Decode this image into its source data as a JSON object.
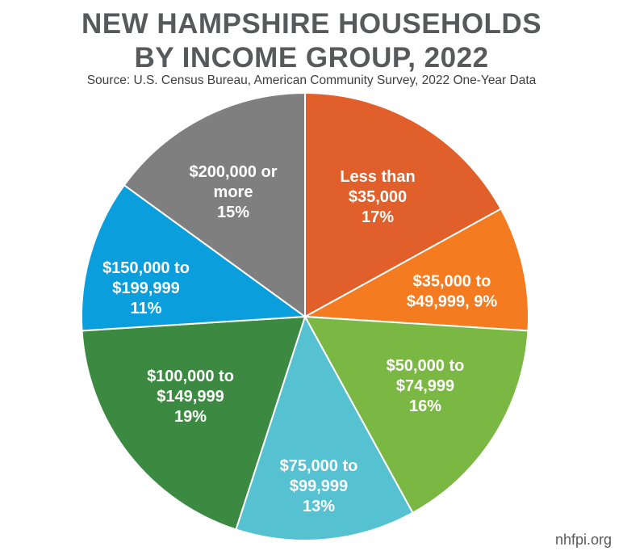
{
  "title_line1": "NEW HAMPSHIRE HOUSEHOLDS",
  "title_line2": "BY INCOME GROUP, 2022",
  "source": "Source: U.S. Census Bureau, American Community Survey, 2022 One-Year Data",
  "site": "nhfpi.org",
  "chart_data": {
    "type": "pie",
    "title": "NEW HAMPSHIRE HOUSEHOLDS BY INCOME GROUP, 2022",
    "slices": [
      {
        "category": "Less than $35,000",
        "value": 17,
        "color": "#e15f2b",
        "label_lines": [
          "Less than",
          "$35,000",
          "17%"
        ]
      },
      {
        "category": "$35,000 to $49,999",
        "value": 9,
        "color": "#f47b20",
        "label_lines": [
          "$35,000 to",
          "$49,999, 9%"
        ]
      },
      {
        "category": "$50,000 to $74,999",
        "value": 16,
        "color": "#7ab743",
        "label_lines": [
          "$50,000 to",
          "$74,999",
          "16%"
        ]
      },
      {
        "category": "$75,000 to $99,999",
        "value": 13,
        "color": "#56c1d1",
        "label_lines": [
          "$75,000 to",
          "$99,999",
          "13%"
        ]
      },
      {
        "category": "$100,000 to $149,999",
        "value": 19,
        "color": "#3c8a41",
        "label_lines": [
          "$100,000 to",
          "$149,999",
          "19%"
        ]
      },
      {
        "category": "$150,000 to $199,999",
        "value": 11,
        "color": "#0a9fdc",
        "label_lines": [
          "$150,000 to",
          "$199,999",
          "11%"
        ]
      },
      {
        "category": "$200,000 or more",
        "value": 15,
        "color": "#7f7f7f",
        "label_lines": [
          "$200,000 or",
          "more",
          "15%"
        ]
      }
    ]
  }
}
